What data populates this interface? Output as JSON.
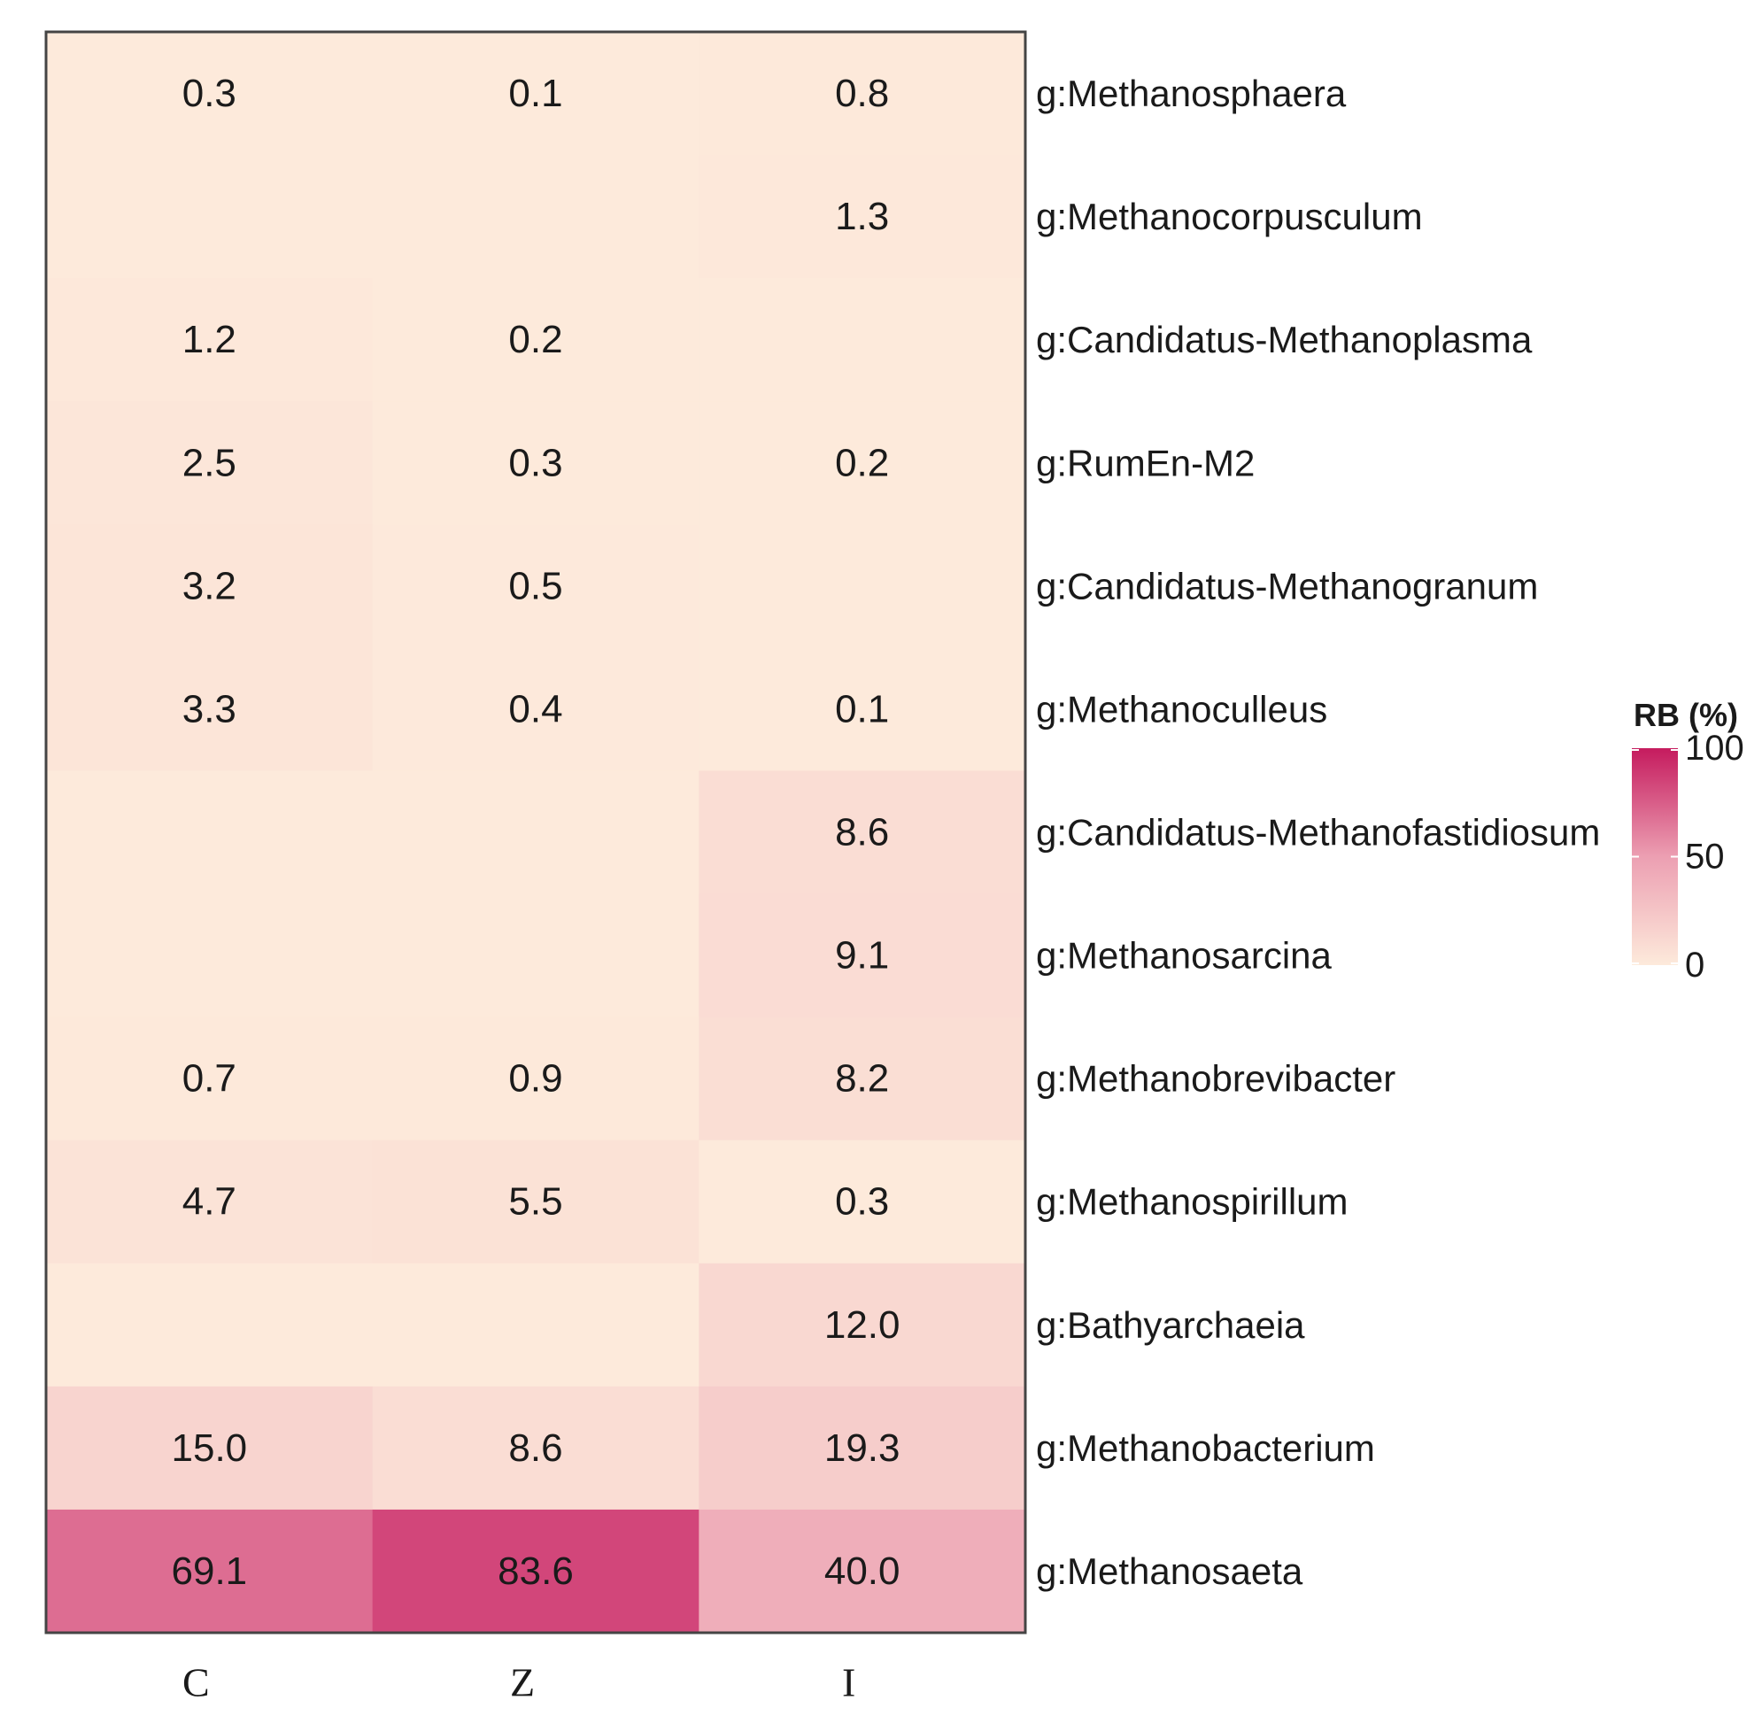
{
  "chart_data": {
    "type": "heatmap",
    "title": "",
    "columns": [
      "C",
      "Z",
      "I"
    ],
    "rows": [
      "g:Methanosphaera",
      "g:Methanocorpusculum",
      "g:Candidatus-Methanoplasma",
      "g:RumEn-M2",
      "g:Candidatus-Methanogranum",
      "g:Methanoculleus",
      "g:Candidatus-Methanofastidiosum",
      "g:Methanosarcina",
      "g:Methanobrevibacter",
      "g:Methanospirillum",
      "g:Bathyarchaeia",
      "g:Methanobacterium",
      "g:Methanosaeta"
    ],
    "values": [
      [
        0.3,
        0.1,
        0.8
      ],
      [
        0,
        0,
        1.3
      ],
      [
        1.2,
        0.2,
        0
      ],
      [
        2.5,
        0.3,
        0.2
      ],
      [
        3.2,
        0.5,
        0
      ],
      [
        3.3,
        0.4,
        0.1
      ],
      [
        0,
        0,
        8.6
      ],
      [
        0,
        0,
        9.1
      ],
      [
        0.7,
        0.9,
        8.2
      ],
      [
        4.7,
        5.5,
        0.3
      ],
      [
        0,
        0,
        12.0
      ],
      [
        15.0,
        8.6,
        19.3
      ],
      [
        69.1,
        83.6,
        40.0
      ]
    ],
    "labels": [
      [
        "0.3",
        "0.1",
        "0.8"
      ],
      [
        "",
        "",
        "1.3"
      ],
      [
        "1.2",
        "0.2",
        ""
      ],
      [
        "2.5",
        "0.3",
        "0.2"
      ],
      [
        "3.2",
        "0.5",
        ""
      ],
      [
        "3.3",
        "0.4",
        "0.1"
      ],
      [
        "",
        "",
        "8.6"
      ],
      [
        "",
        "",
        "9.1"
      ],
      [
        "0.7",
        "0.9",
        "8.2"
      ],
      [
        "4.7",
        "5.5",
        "0.3"
      ],
      [
        "",
        "",
        "12.0"
      ],
      [
        "15.0",
        "8.6",
        "19.3"
      ],
      [
        "69.1",
        "83.6",
        "40.0"
      ]
    ],
    "legend": {
      "title": "RB (%)",
      "ticks": [
        "100",
        "50",
        "0"
      ],
      "range": [
        0,
        100
      ],
      "placement": "right",
      "color_low": "#fdeadb",
      "color_high": "#c51b5e"
    }
  }
}
